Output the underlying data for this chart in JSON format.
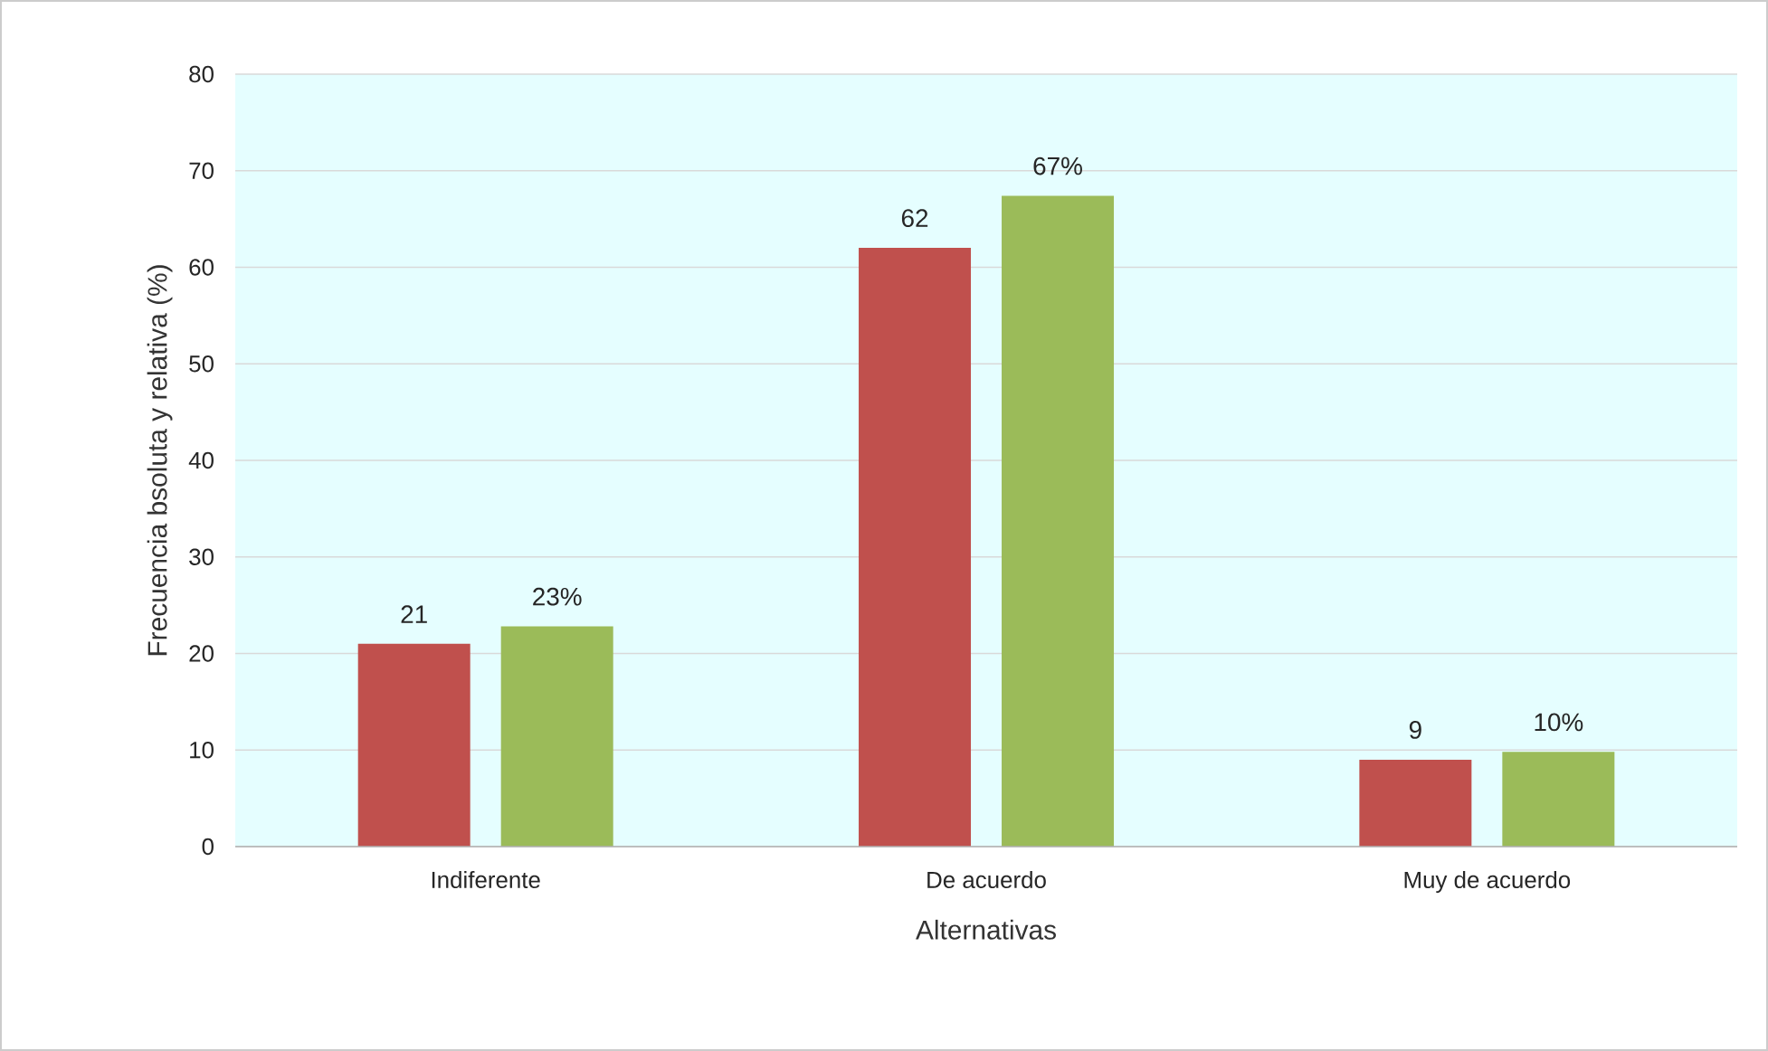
{
  "chart_data": {
    "type": "bar",
    "xlabel": "Alternativas",
    "ylabel": "Frecuencia bsoluta y relativa (%)",
    "categories": [
      "Indiferente",
      "De acuerdo",
      "Muy de acuerdo"
    ],
    "series": [
      {
        "color": "#c0504d",
        "values": [
          21,
          62,
          9
        ],
        "value_labels": [
          "21",
          "62",
          "9"
        ]
      },
      {
        "color": "#9bbb59",
        "values": [
          22.8,
          67.4,
          9.8
        ],
        "value_labels": [
          "23%",
          "67%",
          "10%"
        ]
      }
    ],
    "ylim": [
      0,
      80
    ],
    "yticks": [
      0,
      10,
      20,
      30,
      40,
      50,
      60,
      70,
      80
    ],
    "grid": "y",
    "legend": false
  }
}
